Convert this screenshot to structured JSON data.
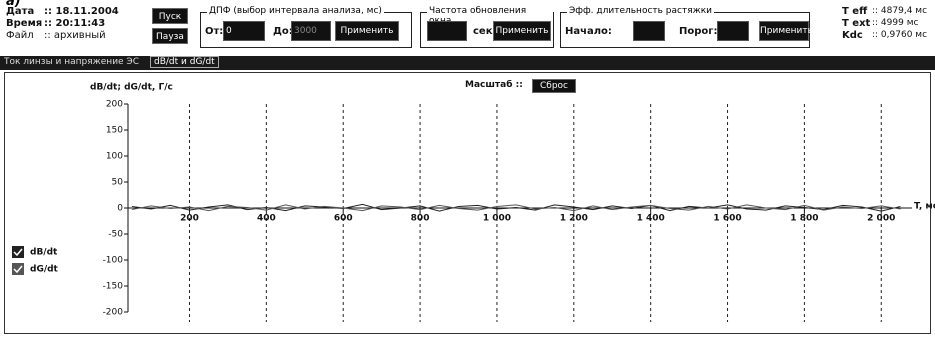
{
  "figure_label": "а)",
  "header": {
    "date_label": "Дата",
    "date_value": ":: 18.11.2004",
    "time_label": "Время",
    "time_value": ":: 20:11:43",
    "file_label": "Файл",
    "file_value": ":: архивный"
  },
  "buttons": {
    "start": "Пуск",
    "pause": "Пауза"
  },
  "dft": {
    "title": "ДПФ (выбор интервала анализа, мс)",
    "from_label": "От:",
    "from_value": "0",
    "to_label": "До:",
    "to_value": "3000",
    "apply": "Применить"
  },
  "refresh": {
    "title": "Частота обновления окна",
    "unit": "сек",
    "apply": "Применить"
  },
  "stretch": {
    "title": "Эфф. длительность растяжки",
    "start_label": "Начало:",
    "threshold_label": "Порог:",
    "apply": "Применить"
  },
  "stats": [
    {
      "label": "T eff",
      "value": ":: 4879,4 мс"
    },
    {
      "label": "T ext",
      "value": ":: 4999 мс"
    },
    {
      "label": "Kdc",
      "value": ":: 0,9760 мс"
    }
  ],
  "tabs": [
    "Ток линзы и напряжение ЭС",
    "dB/dt и dG/dt"
  ],
  "scale": {
    "label": "Масштаб ::",
    "reset": "Сброс"
  },
  "chart_data": {
    "type": "line",
    "y_label": "dB/dt; dG/dt, Г/с",
    "x_label": "T, мс",
    "x": [
      50,
      100,
      150,
      200,
      250,
      300,
      350,
      400,
      450,
      500,
      550,
      600,
      650,
      700,
      750,
      800,
      850,
      900,
      950,
      1000,
      1050,
      1100,
      1150,
      1200,
      1250,
      1300,
      1350,
      1400,
      1450,
      1500,
      1550,
      1600,
      1650,
      1700,
      1750,
      1800,
      1850,
      1900,
      1950,
      2000,
      2050
    ],
    "series": [
      {
        "name": "dB/dt",
        "color": "#222222",
        "values": [
          3,
          -2,
          5,
          -4,
          2,
          6,
          -3,
          1,
          -5,
          4,
          2,
          -1,
          7,
          -3,
          0,
          4,
          -6,
          3,
          5,
          -2,
          1,
          -4,
          6,
          2,
          -3,
          4,
          -1,
          5,
          -5,
          3,
          0,
          6,
          -2,
          -4,
          4,
          1,
          -3,
          5,
          2,
          -6,
          3
        ]
      },
      {
        "name": "dG/dt",
        "color": "#555555",
        "values": [
          -3,
          4,
          -1,
          2,
          -5,
          3,
          1,
          -4,
          6,
          -2,
          3,
          0,
          -5,
          4,
          2,
          -3,
          5,
          -1,
          -4,
          3,
          6,
          -2,
          1,
          -5,
          4,
          -3,
          2,
          5,
          -1,
          -4,
          3,
          -2,
          6,
          0,
          -3,
          5,
          -4,
          2,
          -1,
          4,
          -2
        ]
      }
    ],
    "xlim": [
      40,
      2080
    ],
    "ylim": [
      -200,
      200
    ],
    "xticks": [
      200,
      400,
      600,
      800,
      {
        "value": 1000,
        "label": "1 000"
      },
      {
        "value": 1200,
        "label": "1 200"
      },
      {
        "value": 1400,
        "label": "1 400"
      },
      {
        "value": 1600,
        "label": "1 600"
      },
      {
        "value": 1800,
        "label": "1 800"
      },
      {
        "value": 2000,
        "label": "2 000"
      }
    ],
    "yticks": [
      200,
      150,
      100,
      50,
      0,
      -50,
      -100,
      -150,
      -200
    ],
    "grid": true
  }
}
